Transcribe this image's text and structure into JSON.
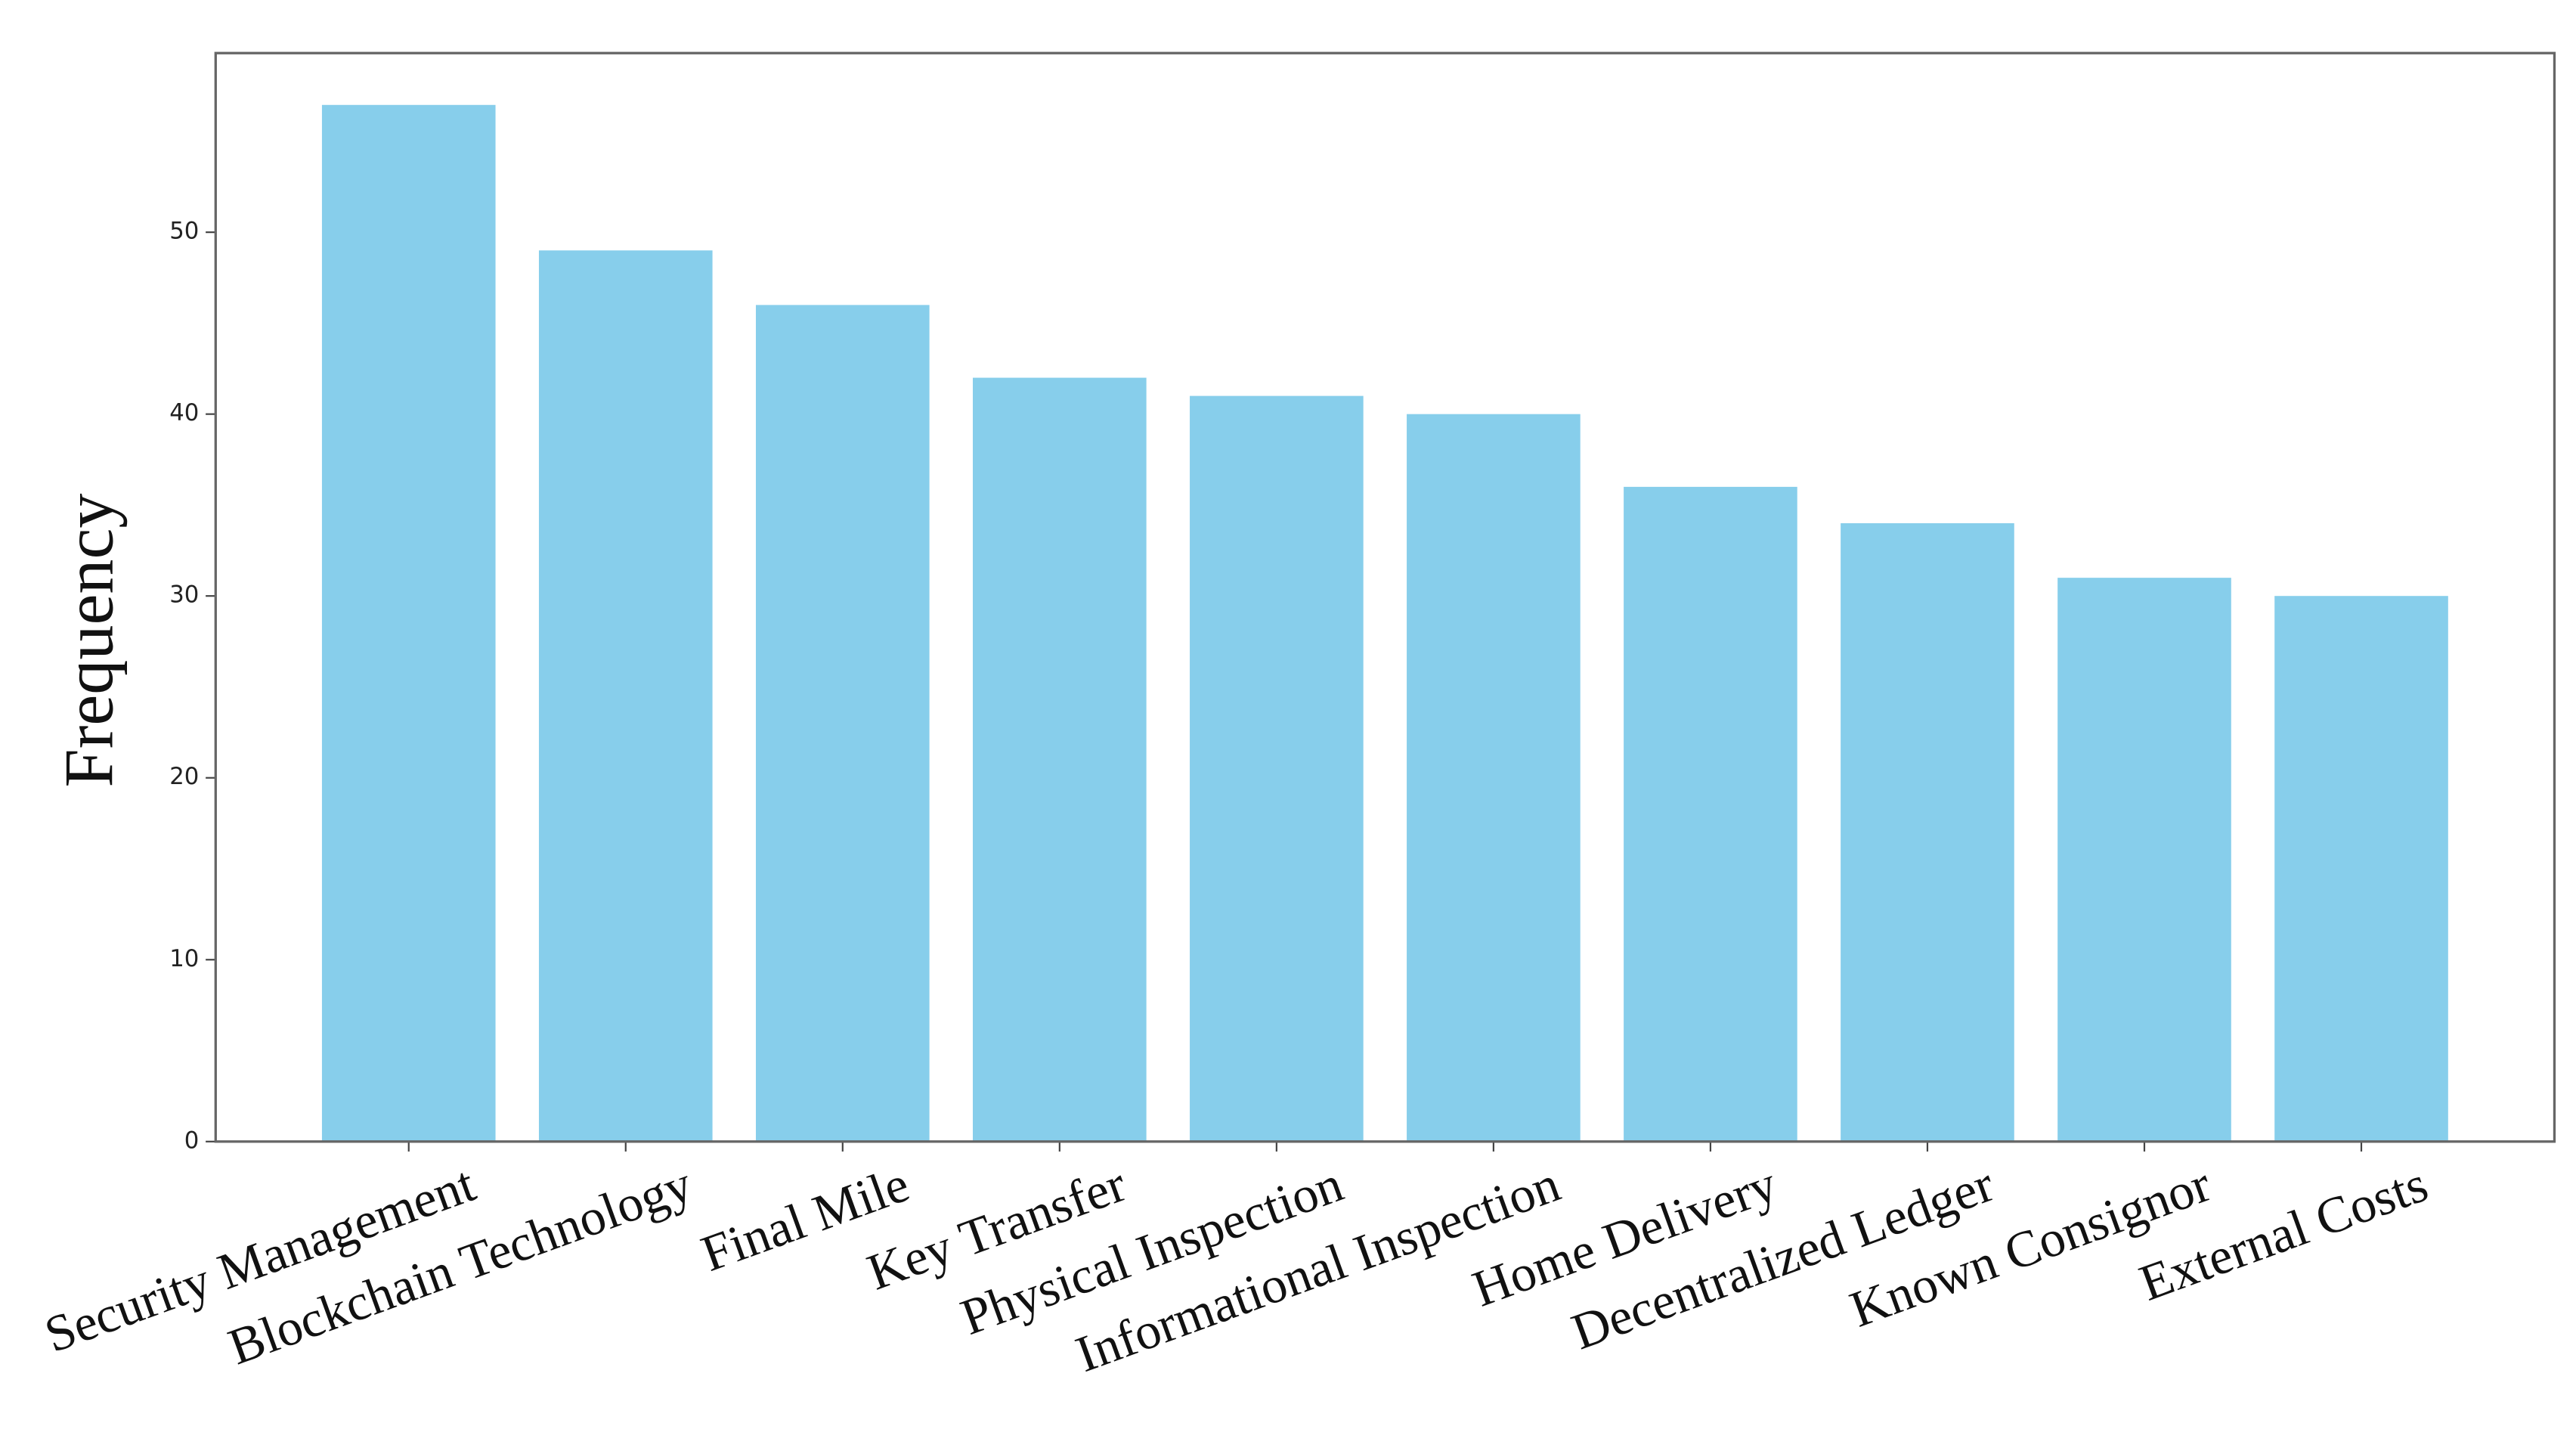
{
  "chart_data": {
    "type": "bar",
    "y_label": "Frequency",
    "categories": [
      "Security Management",
      "Blockchain Technology",
      "Final Mile",
      "Key Transfer",
      "Physical Inspection",
      "Informational Inspection",
      "Home Delivery",
      "Decentralized Ledger",
      "Known Consignor",
      "External Costs"
    ],
    "values": [
      57,
      49,
      46,
      42,
      41,
      40,
      36,
      34,
      31,
      30
    ],
    "color": "#87ceeb",
    "ylim": [
      0,
      59.85
    ],
    "yticks": [
      0,
      10,
      20,
      30,
      40,
      50
    ],
    "grid": false
  }
}
